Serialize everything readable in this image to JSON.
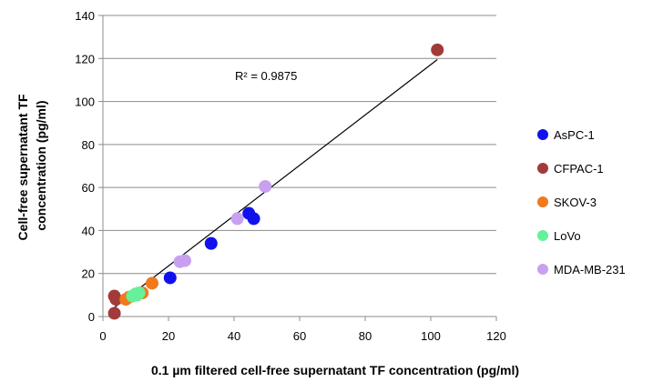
{
  "chart_data": {
    "type": "scatter",
    "xlabel": "0.1 µm filtered cell-free supernatant TF concentration (pg/ml)",
    "ylabel_lines": [
      "Cell-free supernatant TF",
      "concentration (pg/ml)"
    ],
    "xlim": [
      0,
      120
    ],
    "ylim": [
      0,
      140
    ],
    "xticks": [
      0,
      20,
      40,
      60,
      80,
      100,
      120
    ],
    "yticks": [
      0,
      20,
      40,
      60,
      80,
      100,
      120,
      140
    ],
    "grid": "horizontal",
    "legend_position": "right",
    "annotation": "R² = 0.9875",
    "trendline": {
      "x": [
        3.5,
        102
      ],
      "y": [
        4.2,
        119.5
      ]
    },
    "series": [
      {
        "name": "AsPC-1",
        "color": "#1111ee",
        "x": [
          20.5,
          33,
          44.5,
          46
        ],
        "y": [
          18,
          34,
          48,
          45.5
        ]
      },
      {
        "name": "CFPAC-1",
        "color": "#a33a3a",
        "x": [
          3.5,
          3.5,
          4,
          102
        ],
        "y": [
          1.5,
          9.5,
          8,
          124
        ]
      },
      {
        "name": "SKOV-3",
        "color": "#f07a1c",
        "x": [
          7,
          8,
          12,
          15
        ],
        "y": [
          8,
          9,
          11,
          15.5
        ]
      },
      {
        "name": "LoVo",
        "color": "#66f09a",
        "x": [
          9,
          10,
          10.5,
          11
        ],
        "y": [
          9.5,
          10.5,
          10,
          11
        ]
      },
      {
        "name": "MDA-MB-231",
        "color": "#c8a0f0",
        "x": [
          23.5,
          25,
          41,
          49.5
        ],
        "y": [
          25.5,
          26,
          45.5,
          60.5
        ]
      }
    ]
  }
}
